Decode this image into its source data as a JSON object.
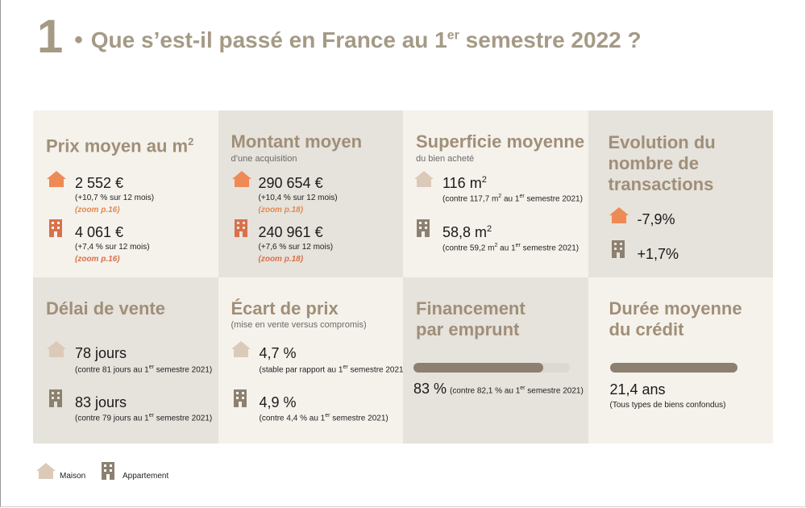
{
  "title": {
    "number": "1",
    "bullet": "•",
    "text": "Que s’est-il passé en France au 1",
    "sup": "er",
    "tail": " semestre 2022 ?"
  },
  "colors": {
    "accent": "#a08f78",
    "house": "#ee8a55",
    "building": "#8c8170",
    "muted_house": "#dccab8"
  },
  "cells": {
    "prix": {
      "heading": "Prix moyen au m",
      "heading_sup": "2",
      "maison": {
        "value": "2 552 €",
        "note": "(+10,7 % sur 12 mois)",
        "zoom": "(zoom p.16)"
      },
      "appart": {
        "value": "4 061 €",
        "note": "(+7,4 % sur 12 mois)",
        "zoom": "(zoom p.16)"
      }
    },
    "montant": {
      "heading": "Montant moyen",
      "sub": "d’une acquisition",
      "maison": {
        "value": "290 654 €",
        "note": "(+10,4 % sur 12 mois)",
        "zoom": "(zoom p.18)"
      },
      "appart": {
        "value": "240 961 €",
        "note": "(+7,6 % sur 12 mois)",
        "zoom": "(zoom p.18)"
      }
    },
    "superficie": {
      "heading": "Superficie moyenne",
      "sub": "du bien acheté",
      "maison": {
        "value": "116 m",
        "value_sup": "2",
        "note": "(contre 117,7 m",
        "note_sup": "2",
        "note_mid": " au 1",
        "note_sup2": "er",
        "note_tail": " semestre 2021)"
      },
      "appart": {
        "value": "58,8 m",
        "value_sup": "2",
        "note": "(contre 59,2 m",
        "note_sup": "2",
        "note_mid": " au 1",
        "note_sup2": "er",
        "note_tail": " semestre 2021)"
      }
    },
    "evolution": {
      "heading_l1": "Evolution du",
      "heading_l2": "nombre de",
      "heading_l3": "transactions",
      "maison": {
        "value": "-7,9%"
      },
      "appart": {
        "value": "+1,7%"
      }
    },
    "delai": {
      "heading": "Délai de vente",
      "maison": {
        "value": "78 jours",
        "note": "(contre 81 jours au 1",
        "note_sup": "er",
        "note_tail": " semestre 2021)"
      },
      "appart": {
        "value": "83 jours",
        "note": "(contre 79 jours au 1",
        "note_sup": "er",
        "note_tail": " semestre 2021)"
      }
    },
    "ecart": {
      "heading": "Écart de prix",
      "sub": "(mise en vente versus compromis)",
      "maison": {
        "value": "4,7 %",
        "note": "(stable par rapport au 1",
        "note_sup": "er",
        "note_tail": " semestre 2021)"
      },
      "appart": {
        "value": "4,9 %",
        "note": "(contre 4,4 % au 1",
        "note_sup": "er",
        "note_tail": " semestre 2021)"
      }
    },
    "financement": {
      "heading_l1": "Financement",
      "heading_l2": "par emprunt",
      "progress": 0.83,
      "value": "83 %",
      "note": "(contre 82,1 % au 1",
      "note_sup": "er",
      "note_tail": " semestre 2021)"
    },
    "duree": {
      "heading_l1": "Durée moyenne",
      "heading_l2": "du crédit",
      "progress": 1.0,
      "value": "21,4 ans",
      "note": "(Tous types de biens confondus)"
    }
  },
  "legend": {
    "maison": "Maison",
    "appartement": "Appartement"
  }
}
